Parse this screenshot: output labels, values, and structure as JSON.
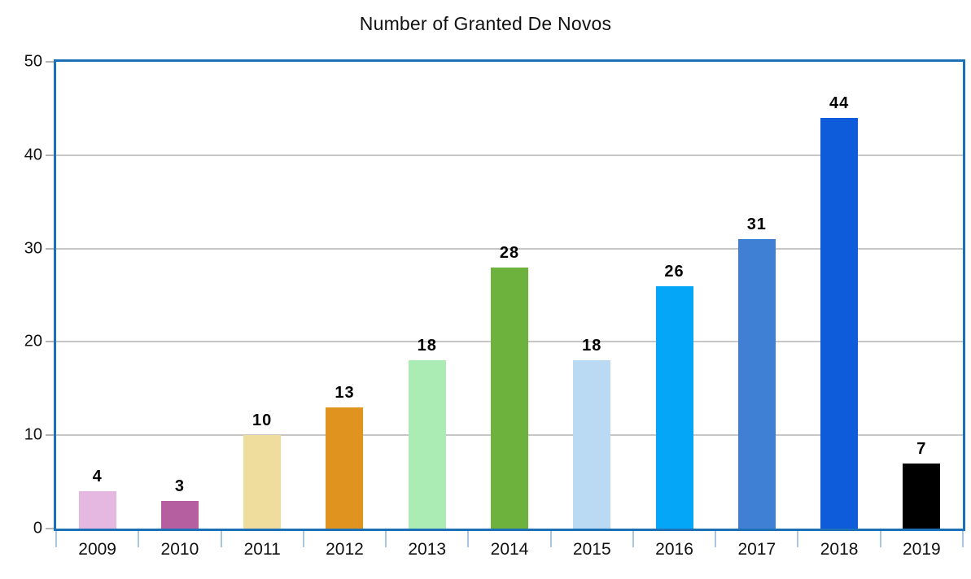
{
  "chart_data": {
    "type": "bar",
    "title": "Number of Granted De Novos",
    "xlabel": "",
    "ylabel": "",
    "categories": [
      "2009",
      "2010",
      "2011",
      "2012",
      "2013",
      "2014",
      "2015",
      "2016",
      "2017",
      "2018",
      "2019"
    ],
    "values": [
      4,
      3,
      10,
      13,
      18,
      28,
      18,
      26,
      31,
      44,
      7
    ],
    "bar_colors": [
      "#e5b8e2",
      "#b55fa0",
      "#eedd9d",
      "#e0941f",
      "#abecb4",
      "#6db23d",
      "#b9daf2",
      "#04a7f7",
      "#3f80d4",
      "#0f5cda",
      "#000000"
    ],
    "data_labels": [
      "4",
      "3",
      "10",
      "13",
      "18",
      "28",
      "18",
      "26",
      "31",
      "44",
      "7"
    ],
    "ylim": [
      0,
      50
    ],
    "yticks": [
      0,
      10,
      20,
      30,
      40,
      50
    ],
    "grid": "horizontal",
    "legend": "none",
    "colors": {
      "plot_border": "#1b70b8",
      "gridline": "#c6c6c6",
      "y_tick": "#b3b3b3",
      "x_tick": "#a9c6e0",
      "text": "#111111",
      "value_label": "#000000",
      "background": "#ffffff"
    }
  }
}
